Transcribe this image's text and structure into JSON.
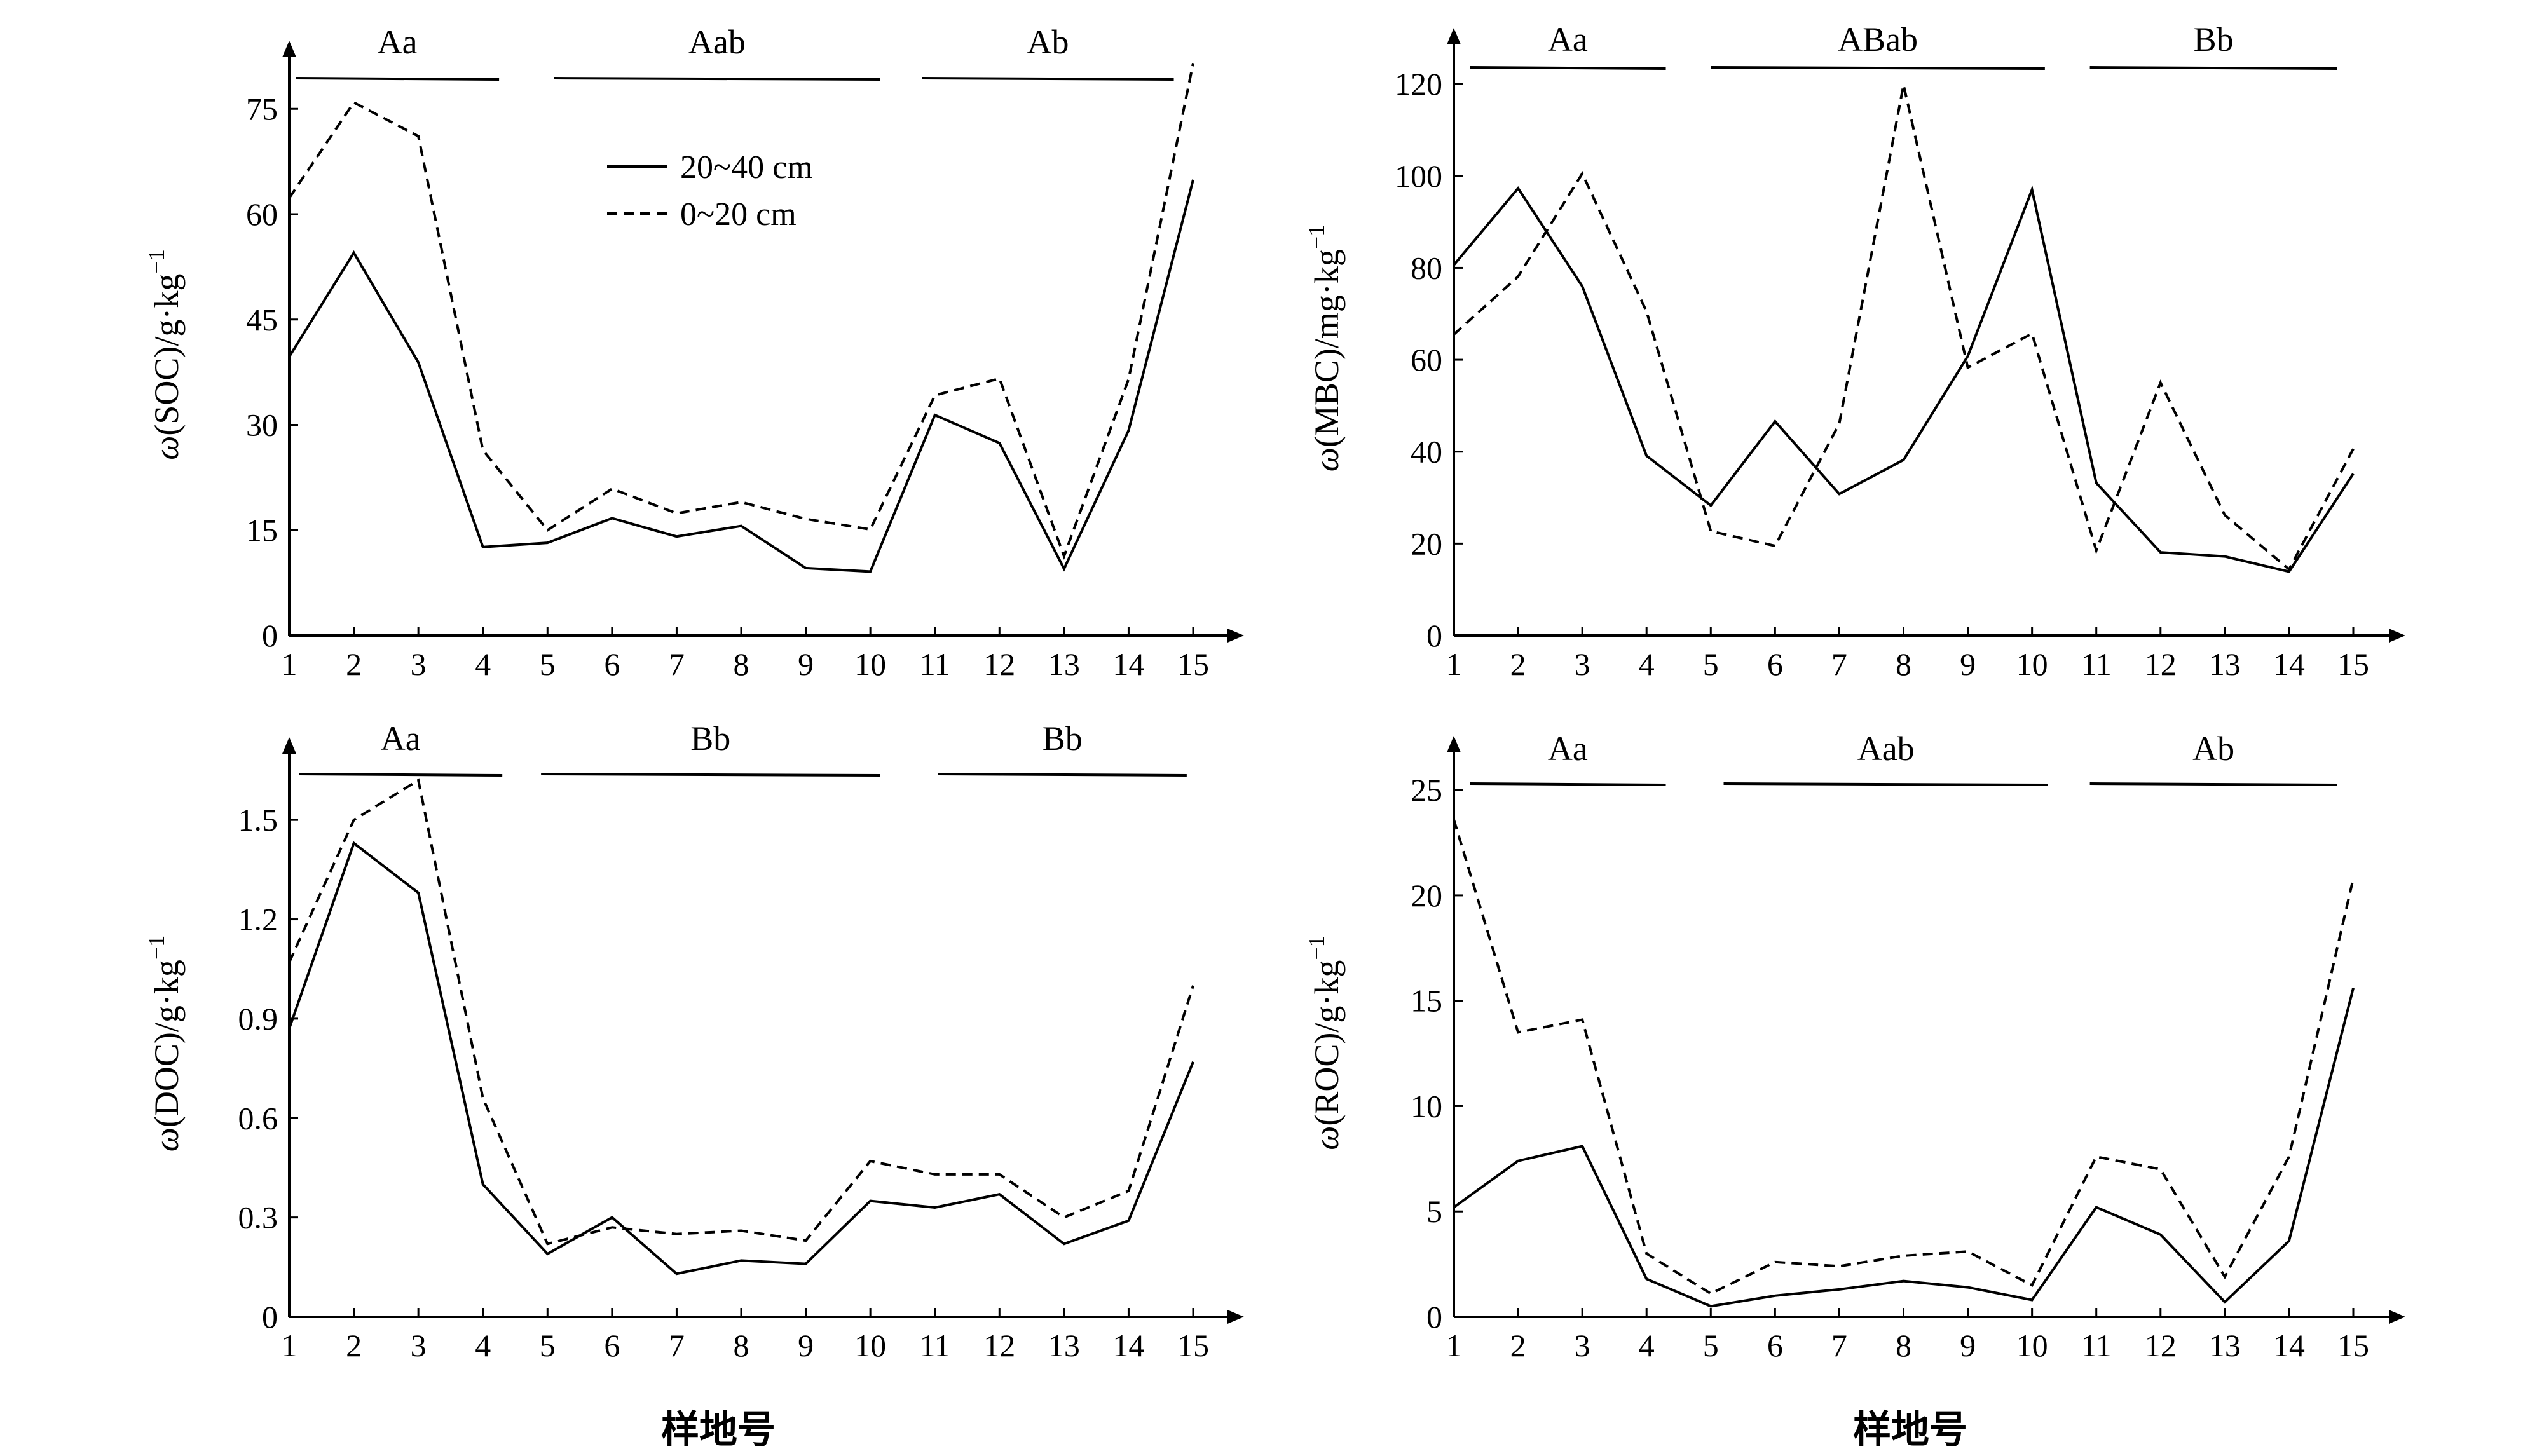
{
  "x_axis_title": "样地号",
  "legend": {
    "solid_label": "20~40 cm",
    "dashed_label": "0~20 cm"
  },
  "colors": {
    "line": "#000000",
    "background": "#ffffff"
  },
  "chart_data": [
    {
      "type": "line",
      "panel": "top-left",
      "ylabel_var": "ω",
      "ylabel_main": "(SOC)/g·kg",
      "ylabel_sup": "−1",
      "xlabel": "",
      "x": [
        1,
        2,
        3,
        4,
        5,
        6,
        7,
        8,
        9,
        10,
        11,
        12,
        13,
        14,
        15
      ],
      "ylim": [
        0,
        80
      ],
      "yticks": [
        0,
        15,
        30,
        45,
        60,
        75
      ],
      "series": [
        {
          "name": "20~40 cm",
          "style": "solid",
          "values": [
            39.7,
            54.5,
            38.9,
            12.6,
            13.2,
            16.7,
            14.1,
            15.6,
            9.6,
            9.1,
            31.4,
            27.4,
            9.5,
            29.2,
            64.9
          ]
        },
        {
          "name": "0~20 cm",
          "style": "dashed",
          "values": [
            62.3,
            75.9,
            71.1,
            26.4,
            15.0,
            20.9,
            17.4,
            19.0,
            16.6,
            15.1,
            34.2,
            36.6,
            11.3,
            36.5,
            81.5
          ]
        }
      ],
      "groups": [
        {
          "label": "Aa",
          "from": 1.1,
          "to": 4.25
        },
        {
          "label": "Aab",
          "from": 5.1,
          "to": 10.15
        },
        {
          "label": "Ab",
          "from": 10.8,
          "to": 14.7
        }
      ],
      "legend_shown": true
    },
    {
      "type": "line",
      "panel": "top-right",
      "ylabel_var": "ω",
      "ylabel_main": "(MBC)/mg·kg",
      "ylabel_sup": "−1",
      "xlabel": "",
      "x": [
        1,
        2,
        3,
        4,
        5,
        6,
        7,
        8,
        9,
        10,
        11,
        12,
        13,
        14,
        15
      ],
      "ylim": [
        0,
        125
      ],
      "yticks": [
        0,
        20,
        40,
        60,
        80,
        100,
        120
      ],
      "series": [
        {
          "name": "20~40 cm",
          "style": "solid",
          "values": [
            80.6,
            97.3,
            76.0,
            39.1,
            28.3,
            46.6,
            30.8,
            38.2,
            60.8,
            97.0,
            33.2,
            18.1,
            17.2,
            13.9,
            35.2
          ]
        },
        {
          "name": "0~20 cm",
          "style": "dashed",
          "values": [
            65.5,
            78.1,
            100.5,
            70.5,
            22.7,
            19.5,
            46.1,
            119.8,
            58.3,
            65.7,
            18.5,
            55.0,
            26.2,
            14.4,
            40.6
          ]
        }
      ],
      "groups": [
        {
          "label": "Aa",
          "from": 1.25,
          "to": 4.3
        },
        {
          "label": "ABab",
          "from": 5.0,
          "to": 10.2
        },
        {
          "label": "Bb",
          "from": 10.9,
          "to": 14.75
        }
      ],
      "legend_shown": false
    },
    {
      "type": "line",
      "panel": "bottom-left",
      "ylabel_var": "ω",
      "ylabel_main": "(DOC)/g·kg",
      "ylabel_sup": "−1",
      "xlabel": "样地号",
      "x": [
        1,
        2,
        3,
        4,
        5,
        6,
        7,
        8,
        9,
        10,
        11,
        12,
        13,
        14,
        15
      ],
      "ylim": [
        0,
        1.65
      ],
      "yticks": [
        "0",
        "0.3",
        "0.6",
        "0.9",
        "1.2",
        "1.5"
      ],
      "series": [
        {
          "name": "20~40 cm",
          "style": "solid",
          "values": [
            0.87,
            1.43,
            1.28,
            0.4,
            0.19,
            0.3,
            0.13,
            0.17,
            0.16,
            0.35,
            0.33,
            0.37,
            0.22,
            0.29,
            0.77
          ]
        },
        {
          "name": "0~20 cm",
          "style": "dashed",
          "values": [
            1.07,
            1.5,
            1.62,
            0.66,
            0.22,
            0.27,
            0.25,
            0.26,
            0.23,
            0.47,
            0.43,
            0.43,
            0.3,
            0.38,
            1.0
          ]
        }
      ],
      "groups": [
        {
          "label": "Aa",
          "from": 1.15,
          "to": 4.3
        },
        {
          "label": "Bb",
          "from": 4.9,
          "to": 10.15
        },
        {
          "label": "Bb",
          "from": 11.05,
          "to": 14.9
        }
      ],
      "legend_shown": false
    },
    {
      "type": "line",
      "panel": "bottom-right",
      "ylabel_var": "ω",
      "ylabel_main": "(ROC)/g·kg",
      "ylabel_sup": "−1",
      "xlabel": "样地号",
      "x": [
        1,
        2,
        3,
        4,
        5,
        6,
        7,
        8,
        9,
        10,
        11,
        12,
        13,
        14,
        15
      ],
      "ylim": [
        0,
        26
      ],
      "yticks": [
        0,
        5,
        10,
        15,
        20,
        25
      ],
      "series": [
        {
          "name": "20~40 cm",
          "style": "solid",
          "values": [
            5.2,
            7.4,
            8.1,
            1.8,
            0.5,
            1.0,
            1.3,
            1.7,
            1.4,
            0.8,
            5.2,
            3.9,
            0.7,
            3.6,
            15.6
          ]
        },
        {
          "name": "0~20 cm",
          "style": "dashed",
          "values": [
            23.6,
            13.5,
            14.1,
            3.0,
            1.1,
            2.6,
            2.4,
            2.9,
            3.1,
            1.5,
            7.6,
            7.0,
            1.9,
            7.6,
            20.8
          ]
        }
      ],
      "groups": [
        {
          "label": "Aa",
          "from": 1.25,
          "to": 4.3
        },
        {
          "label": "Aab",
          "from": 5.2,
          "to": 10.25
        },
        {
          "label": "Ab",
          "from": 10.9,
          "to": 14.75
        }
      ],
      "legend_shown": false
    }
  ]
}
